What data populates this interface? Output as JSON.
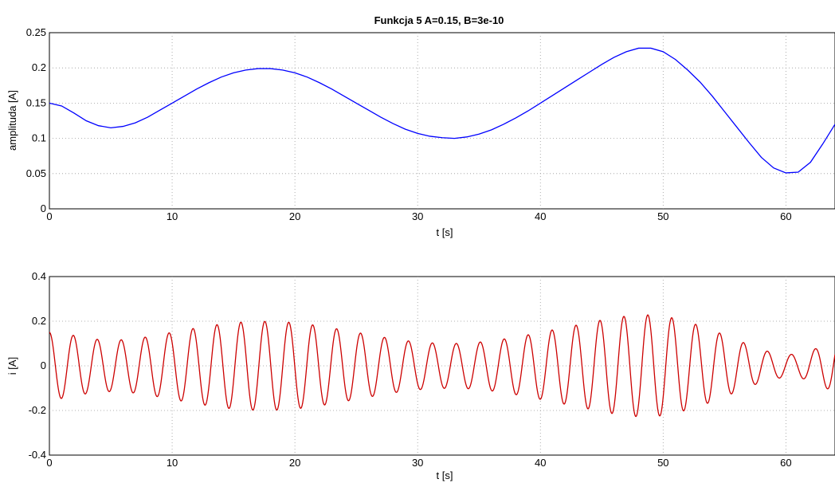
{
  "chart_data": [
    {
      "type": "line",
      "title": "Funkcja 5    A=0.15, B=3e-10",
      "xlabel": "t [s]",
      "ylabel": "amplituda [A]",
      "xlim": [
        0,
        64
      ],
      "ylim": [
        0,
        0.25
      ],
      "xticks": [
        "0",
        "10",
        "20",
        "30",
        "40",
        "50",
        "60"
      ],
      "yticks": [
        "0",
        "0.05",
        "0.1",
        "0.15",
        "0.2",
        "0.25"
      ],
      "grid": true,
      "color": "#0000ff",
      "x": [
        0,
        1,
        2,
        3,
        4,
        5,
        6,
        7,
        8,
        9,
        10,
        11,
        12,
        13,
        14,
        15,
        16,
        17,
        18,
        19,
        20,
        21,
        22,
        23,
        24,
        25,
        26,
        27,
        28,
        29,
        30,
        31,
        32,
        33,
        34,
        35,
        36,
        37,
        38,
        39,
        40,
        41,
        42,
        43,
        44,
        45,
        46,
        47,
        48,
        49,
        50,
        51,
        52,
        53,
        54,
        55,
        56,
        57,
        58,
        59,
        60,
        61,
        62,
        63,
        64
      ],
      "y": [
        0.15,
        0.146,
        0.136,
        0.125,
        0.118,
        0.115,
        0.117,
        0.122,
        0.13,
        0.14,
        0.15,
        0.16,
        0.17,
        0.179,
        0.187,
        0.193,
        0.197,
        0.199,
        0.199,
        0.197,
        0.193,
        0.187,
        0.179,
        0.17,
        0.16,
        0.15,
        0.14,
        0.13,
        0.121,
        0.113,
        0.107,
        0.103,
        0.101,
        0.1,
        0.102,
        0.106,
        0.112,
        0.12,
        0.129,
        0.139,
        0.15,
        0.161,
        0.172,
        0.183,
        0.194,
        0.205,
        0.215,
        0.223,
        0.228,
        0.228,
        0.223,
        0.212,
        0.197,
        0.18,
        0.16,
        0.138,
        0.116,
        0.094,
        0.073,
        0.058,
        0.051,
        0.052,
        0.066,
        0.092,
        0.12
      ]
    },
    {
      "type": "line",
      "xlabel": "t [s]",
      "ylabel": "i [A]",
      "xlim": [
        0,
        64
      ],
      "ylim": [
        -0.4,
        0.4
      ],
      "xticks": [
        "0",
        "10",
        "20",
        "30",
        "40",
        "50",
        "60"
      ],
      "yticks": [
        "-0.4",
        "-0.2",
        "0",
        "0.2",
        "0.4"
      ],
      "grid": true,
      "color": "#cc0000",
      "description_signal": "oscillating current with ~1.95 s period; amplitude follows the envelope of the upper plot",
      "period": 1.95
    }
  ]
}
